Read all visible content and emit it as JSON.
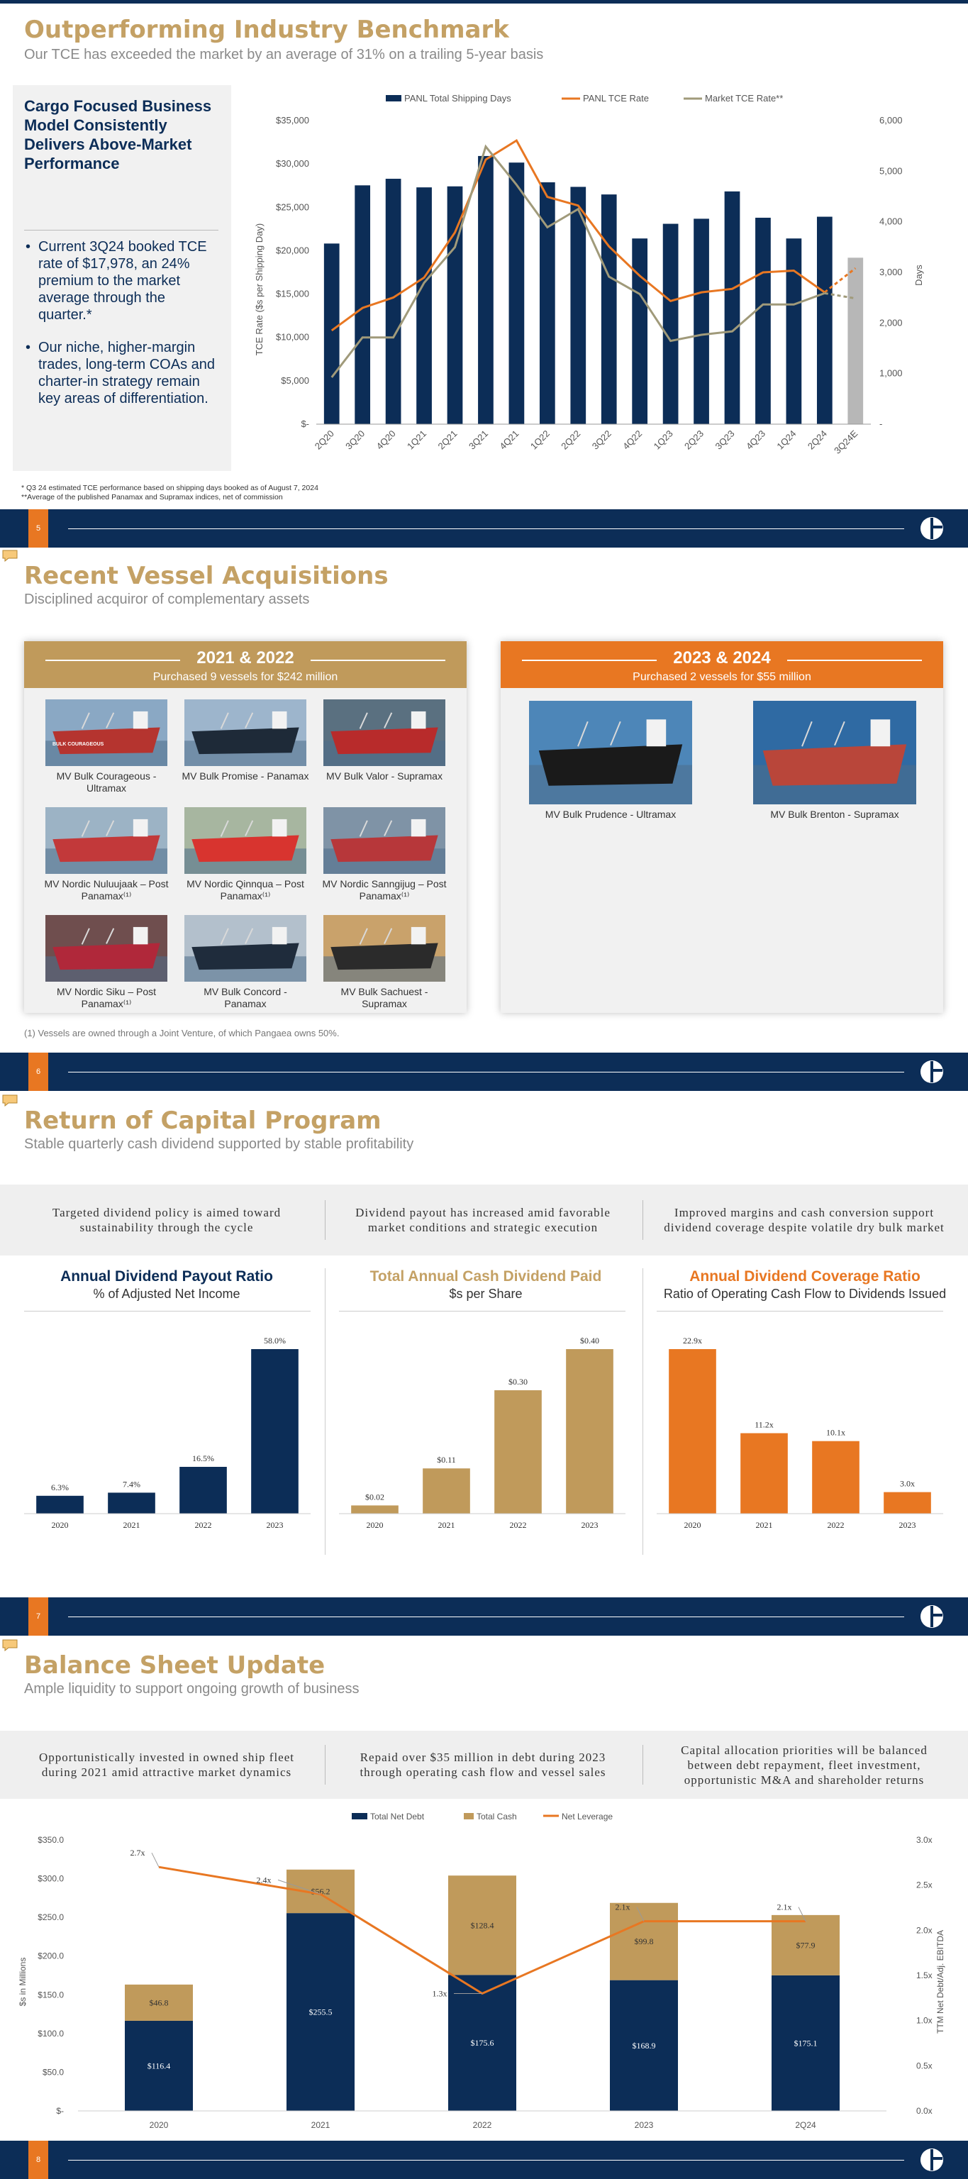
{
  "slide5": {
    "title": "Outperforming Industry Benchmark",
    "subtitle": "Our TCE has exceeded the market by an average of 31% on a trailing 5-year basis",
    "panel_heading": "Cargo Focused Business Model Consistently Delivers Above-Market Performance",
    "bullets": [
      "Current 3Q24 booked TCE rate of $17,978, an 24% premium to the market average through the quarter.*",
      "Our niche, higher-margin trades, long-term COAs and charter-in strategy remain key areas of differentiation."
    ],
    "footnote_1": "* Q3 24 estimated TCE performance based on shipping days booked as of August 7, 2024",
    "footnote_2": "**Average of the published Panamax and Supramax indices, net of commission",
    "page_number": "5",
    "chart_data": {
      "type": "bar+line",
      "categories": [
        "2Q20",
        "3Q20",
        "4Q20",
        "1Q21",
        "2Q21",
        "3Q21",
        "4Q21",
        "1Q22",
        "2Q22",
        "3Q22",
        "4Q22",
        "1Q23",
        "2Q23",
        "3Q23",
        "4Q23",
        "1Q24",
        "2Q24",
        "3Q24E"
      ],
      "ylabel": "TCE Rate ($s per Shipping Day)",
      "y2label": "Days",
      "ylim": [
        0,
        35000
      ],
      "y2lim": [
        0,
        6000
      ],
      "y_ticks": [
        "$-",
        "$5,000",
        "$10,000",
        "$15,000",
        "$20,000",
        "$25,000",
        "$30,000",
        "$35,000"
      ],
      "y2_ticks": [
        "-",
        "1,000",
        "2,000",
        "3,000",
        "4,000",
        "5,000",
        "6,000"
      ],
      "series": [
        {
          "name": "PANL Total Shipping Days",
          "axis": "right",
          "kind": "bar",
          "values": [
            3570,
            4720,
            4850,
            4680,
            4700,
            5300,
            5170,
            4780,
            4690,
            4540,
            3670,
            3960,
            4060,
            4600,
            4080,
            3670,
            4100,
            3290
          ]
        },
        {
          "name": "PANL TCE Rate",
          "axis": "left",
          "kind": "line",
          "values": [
            10800,
            13400,
            14600,
            16900,
            22100,
            30500,
            32700,
            26200,
            25200,
            20500,
            17100,
            14200,
            15200,
            15600,
            17500,
            17700,
            15200,
            17978
          ]
        },
        {
          "name": "Market TCE Rate**",
          "axis": "left",
          "kind": "line",
          "values": [
            5400,
            10000,
            10000,
            16300,
            20400,
            32000,
            27600,
            22700,
            24800,
            17000,
            15000,
            9600,
            10300,
            10700,
            13800,
            13800,
            15100,
            14500
          ]
        }
      ],
      "last_bar_estimate_color": "#b7b7b7",
      "colors": {
        "bars": "#0c2d57",
        "panl": "#e87722",
        "market": "#a09a7a"
      }
    }
  },
  "slide6": {
    "title": "Recent Vessel Acquisitions",
    "subtitle": "Disciplined acquiror of complementary assets",
    "left_heading": "2021 & 2022",
    "left_sub": "Purchased 9 vessels for $242 million",
    "right_heading": "2023 & 2024",
    "right_sub": "Purchased 2 vessels for $55 million",
    "vessels_left": [
      {
        "name": "MV Bulk Courageous - Ultramax",
        "hull": "#b5342f",
        "bg": "#8aa8c4",
        "label": "BULK COURAGEOUS"
      },
      {
        "name": "MV Bulk Promise - Panamax",
        "hull": "#1e2a38",
        "bg": "#9db5cc"
      },
      {
        "name": "MV Bulk Valor - Supramax",
        "hull": "#b82b2b",
        "bg": "#5a7080"
      },
      {
        "name": "MV Nordic Nuluujaak – Post Panamax⁽¹⁾",
        "hull": "#c2393a",
        "bg": "#9cb3c5"
      },
      {
        "name": "MV Nordic Qinnqua – Post Panamax⁽¹⁾",
        "hull": "#d8342f",
        "bg": "#a7b6a0"
      },
      {
        "name": "MV Nordic Sanngijug – Post Panamax⁽¹⁾",
        "hull": "#b7373a",
        "bg": "#7f93a6"
      },
      {
        "name": "MV Nordic Siku – Post Panamax⁽¹⁾",
        "hull": "#b0283a",
        "bg": "#6f4e4e"
      },
      {
        "name": "MV Bulk Concord - Panamax",
        "hull": "#1f2c3c",
        "bg": "#b3c0cc"
      },
      {
        "name": "MV Bulk Sachuest - Supramax",
        "hull": "#2b2b2b",
        "bg": "#c9a26b"
      }
    ],
    "vessels_right": [
      {
        "name": "MV Bulk Prudence - Ultramax",
        "hull": "#1a1a1a",
        "bg": "#4d86b8"
      },
      {
        "name": "MV Bulk Brenton - Supramax",
        "hull": "#b9463a",
        "bg": "#2f6aa3"
      }
    ],
    "footnote": "(1) Vessels are owned through a Joint Venture, of which Pangaea owns 50%.",
    "page_number": "6"
  },
  "slide7": {
    "title": "Return of Capital Program",
    "subtitle": "Stable quarterly cash dividend supported by stable profitability",
    "quotes": [
      "Targeted dividend policy is aimed toward sustainability through the cycle",
      "Dividend payout has increased amid favorable market conditions and strategic execution",
      "Improved margins and cash conversion support dividend coverage despite volatile dry bulk market"
    ],
    "page_number": "7",
    "chart_data": [
      {
        "type": "bar",
        "title": "Annual Dividend Payout Ratio",
        "subtitle": "% of Adjusted Net Income",
        "categories": [
          "2020",
          "2021",
          "2022",
          "2023"
        ],
        "values": [
          6.3,
          7.4,
          16.5,
          58.0
        ],
        "labels": [
          "6.3%",
          "7.4%",
          "16.5%",
          "58.0%"
        ],
        "color": "#0c2d57",
        "title_color": "#0c2d57"
      },
      {
        "type": "bar",
        "title": "Total Annual Cash Dividend Paid",
        "subtitle": "$s per Share",
        "categories": [
          "2020",
          "2021",
          "2022",
          "2023"
        ],
        "values": [
          0.02,
          0.11,
          0.3,
          0.4
        ],
        "labels": [
          "$0.02",
          "$0.11",
          "$0.30",
          "$0.40"
        ],
        "color": "#c09a5b",
        "title_color": "#c4a165"
      },
      {
        "type": "bar",
        "title": "Annual Dividend Coverage Ratio",
        "subtitle": "Ratio of Operating Cash Flow to Dividends Issued",
        "categories": [
          "2020",
          "2021",
          "2022",
          "2023"
        ],
        "values": [
          22.9,
          11.2,
          10.1,
          3.0
        ],
        "labels": [
          "22.9x",
          "11.2x",
          "10.1x",
          "3.0x"
        ],
        "color": "#e87722",
        "title_color": "#e87722"
      }
    ]
  },
  "slide8": {
    "title": "Balance Sheet Update",
    "subtitle": "Ample liquidity to support ongoing growth of business",
    "quotes": [
      "Opportunistically invested in owned ship fleet during 2021 amid attractive market dynamics",
      "Repaid over $35 million in debt during 2023 through operating cash flow and vessel sales",
      "Capital allocation priorities will be balanced between debt repayment, fleet investment, opportunistic M&A and shareholder returns"
    ],
    "page_number": "8",
    "chart_data": {
      "type": "stacked bar+line",
      "categories": [
        "2020",
        "2021",
        "2022",
        "2023",
        "2Q24"
      ],
      "ylabel": "$s in Millions",
      "y2label": "TTM Net Debt/Adj. EBITDA",
      "ylim": [
        0,
        350
      ],
      "y2lim": [
        0,
        3.0
      ],
      "y_ticks": [
        "$-",
        "$50.0",
        "$100.0",
        "$150.0",
        "$200.0",
        "$250.0",
        "$300.0",
        "$350.0"
      ],
      "y2_ticks": [
        "0.0x",
        "0.5x",
        "1.0x",
        "1.5x",
        "2.0x",
        "2.5x",
        "3.0x"
      ],
      "series": [
        {
          "name": "Total Net Debt",
          "kind": "bar",
          "values": [
            116.4,
            255.5,
            175.6,
            168.9,
            175.1
          ],
          "labels": [
            "$116.4",
            "$255.5",
            "$175.6",
            "$168.9",
            "$175.1"
          ],
          "color": "#0c2d57"
        },
        {
          "name": "Total Cash",
          "kind": "bar",
          "values": [
            46.8,
            56.2,
            128.4,
            99.8,
            77.9
          ],
          "labels": [
            "$46.8",
            "$56.2",
            "$128.4",
            "$99.8",
            "$77.9"
          ],
          "color": "#c09a5b"
        },
        {
          "name": "Net Leverage",
          "kind": "line",
          "values": [
            2.7,
            2.4,
            1.3,
            2.1,
            2.1
          ],
          "labels": [
            "2.7x",
            "2.4x",
            "1.3x",
            "2.1x",
            "2.1x"
          ],
          "color": "#e87722"
        }
      ]
    }
  }
}
